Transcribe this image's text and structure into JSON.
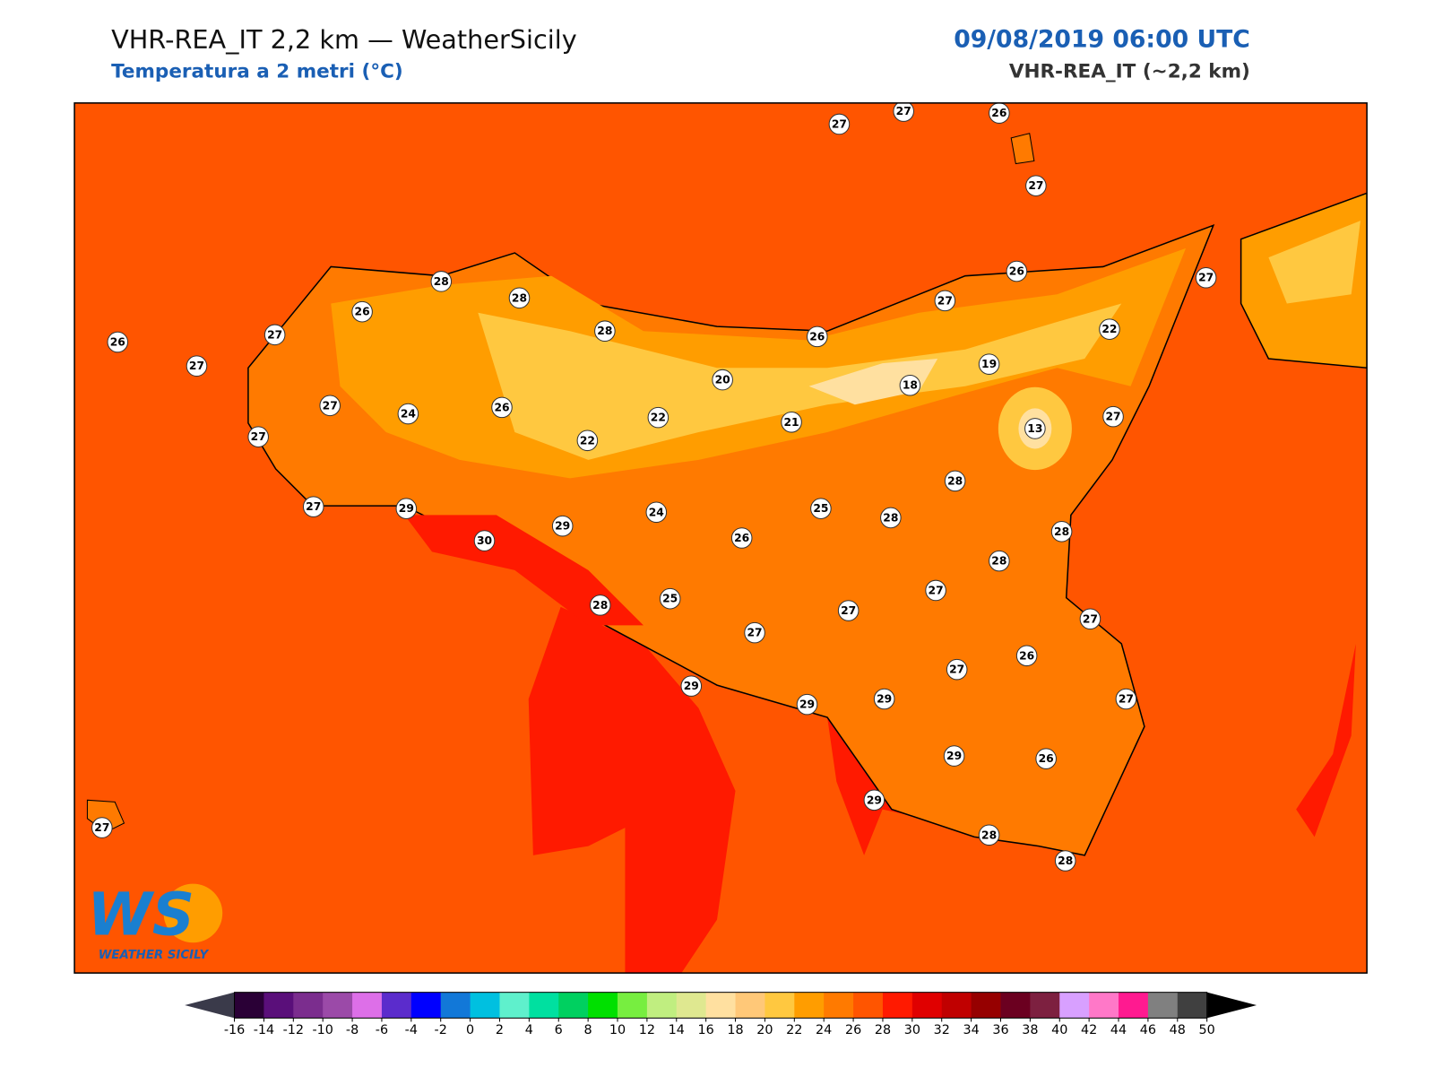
{
  "header": {
    "title": "VHR-REA_IT 2,2 km — WeatherSicily",
    "subtitle": "Temperatura a 2 metri (°C)",
    "datetime": "09/08/2019 06:00 UTC",
    "model": "VHR-REA_IT (~2,2 km)"
  },
  "logo": {
    "text": "WS",
    "caption": "Weather Sicily"
  },
  "station_values": [
    27,
    27,
    26,
    27,
    26,
    27,
    27,
    22,
    28,
    28,
    26,
    27,
    26,
    27,
    28,
    26,
    20,
    19,
    18,
    27,
    24,
    26,
    22,
    21,
    13,
    27,
    27,
    22,
    28,
    27,
    29,
    24,
    25,
    28,
    29,
    30,
    26,
    28,
    28,
    27,
    28,
    25,
    27,
    27,
    27,
    27,
    26,
    29,
    29,
    29,
    27,
    29,
    26,
    29,
    28,
    28,
    27
  ],
  "colorbar": {
    "ticks": [
      -16,
      -14,
      -12,
      -10,
      -8,
      -6,
      -4,
      -2,
      0,
      2,
      4,
      6,
      8,
      10,
      12,
      14,
      16,
      18,
      20,
      22,
      24,
      26,
      28,
      30,
      32,
      34,
      36,
      38,
      40,
      42,
      44,
      46,
      48,
      50
    ],
    "colors": [
      "#2a0036",
      "#5a0f7a",
      "#7b2d8e",
      "#9b4aa8",
      "#dd6fe8",
      "#5b2ccc",
      "#0000ff",
      "#1278d8",
      "#00c0e0",
      "#5ff0cc",
      "#00e0a0",
      "#00d060",
      "#00e000",
      "#77ee40",
      "#c0ee80",
      "#dfe890",
      "#ffe0a0",
      "#ffc878",
      "#ffc840",
      "#ff9d00",
      "#ff7a00",
      "#ff5500",
      "#ff1a00",
      "#e00000",
      "#c00000",
      "#960000",
      "#6b0020",
      "#7d2040",
      "#d8a0ff",
      "#ff78c8",
      "#ff1a90",
      "#808080",
      "#404040"
    ],
    "under_color": "#3a3a4a",
    "over_color": "#000000"
  }
}
